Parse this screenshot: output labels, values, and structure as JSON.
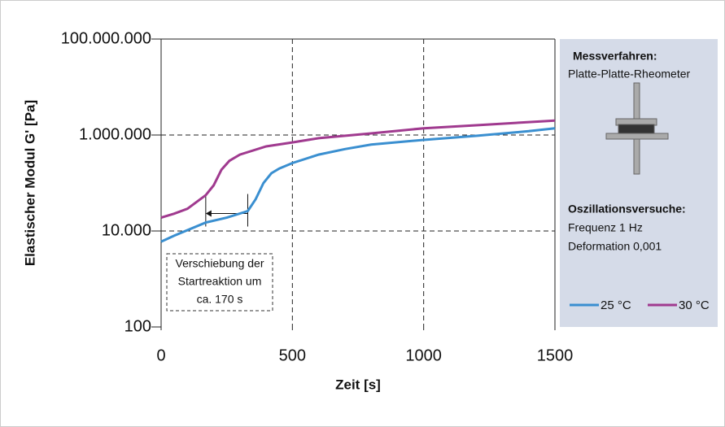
{
  "chart_data": {
    "type": "line",
    "y_label": "Elastischer Modul G' [Pa]",
    "x_label": "Zeit [s]",
    "ylog": true,
    "xlim": [
      0,
      1500
    ],
    "ylim": [
      100,
      100000000
    ],
    "xticks": [
      0,
      500,
      1000,
      1500
    ],
    "yticks": [
      {
        "value": 100,
        "label": "100"
      },
      {
        "value": 10000,
        "label": "10.000"
      },
      {
        "value": 1000000,
        "label": "1.000.000"
      },
      {
        "value": 100000000,
        "label": "100.000.000"
      }
    ],
    "xgrid": [
      500,
      1000
    ],
    "ygrid": [
      10000,
      1000000
    ],
    "series": [
      {
        "name": "25 °C",
        "color": "#3a8fd0",
        "x": [
          0,
          50,
          170,
          250,
          330,
          360,
          390,
          420,
          450,
          500,
          600,
          700,
          800,
          1000,
          1200,
          1400,
          1500
        ],
        "values": [
          6000,
          8000,
          15000,
          19000,
          26000,
          46000,
          100000,
          160000,
          200000,
          260000,
          390000,
          510000,
          630000,
          790000,
          960000,
          1200000,
          1380000
        ]
      },
      {
        "name": "30 °C",
        "color": "#a03a8f",
        "x": [
          0,
          50,
          100,
          170,
          200,
          230,
          260,
          300,
          400,
          500,
          600,
          800,
          1000,
          1200,
          1500
        ],
        "values": [
          19000,
          23000,
          29000,
          56000,
          89000,
          190000,
          290000,
          390000,
          580000,
          700000,
          860000,
          1080000,
          1380000,
          1600000,
          2000000
        ]
      }
    ],
    "annotation": {
      "lines": [
        "Verschiebung der",
        "Startreaktion um",
        "ca. 170 s"
      ],
      "arrow_from": 330,
      "arrow_to": 170,
      "arrow_at": 25000
    },
    "info": {
      "method_title": "Messverfahren:",
      "method": "Platte-Platte-Rheometer",
      "test_title": "Oszillationsversuche:",
      "test_lines": [
        "Frequenz 1 Hz",
        "Deformation 0,001"
      ]
    }
  }
}
